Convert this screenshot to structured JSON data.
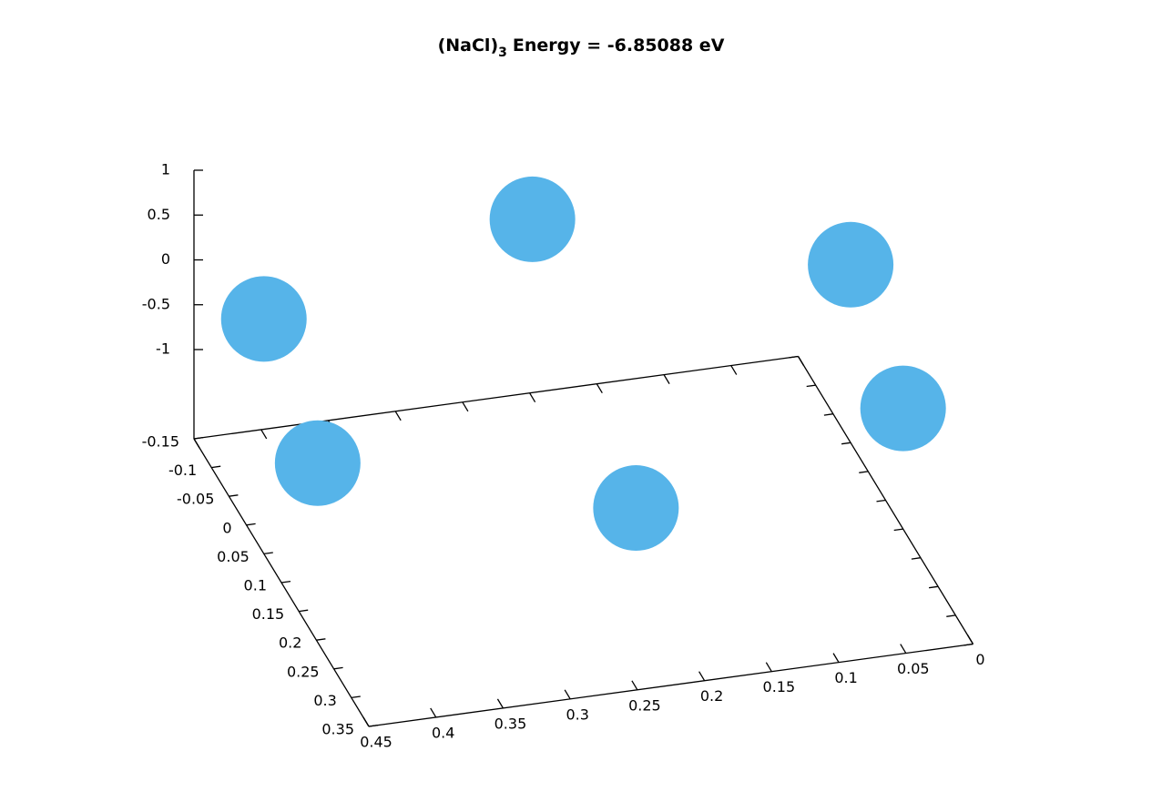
{
  "chart_data": {
    "type": "scatter3d",
    "title": [
      "(NaCl)",
      "3",
      "Energy = -6.85088 eV"
    ],
    "series": [
      {
        "color": "#56b4e9",
        "x": [
          0.424,
          0.237,
          0,
          0,
          0.436,
          0.225
        ],
        "y": [
          -0.05,
          0,
          0,
          0.15,
          0.15,
          0.25
        ],
        "z": [
          -0.07,
          0.98,
          -0.01,
          -0.65,
          -0.37,
          -0.66
        ]
      }
    ],
    "xlim": [
      0,
      0.45
    ],
    "xticks": [
      0,
      0.05,
      0.1,
      0.15,
      0.2,
      0.25,
      0.3,
      0.35,
      0.4,
      0.45
    ],
    "ylim": [
      -0.15,
      0.35
    ],
    "yticks": [
      -0.15,
      -0.1,
      -0.05,
      0,
      0.05,
      0.1,
      0.15,
      0.2,
      0.25,
      0.3,
      0.35
    ],
    "zlim": [
      -1,
      1
    ],
    "zticks": [
      -1,
      -0.5,
      0,
      0.5,
      1
    ]
  }
}
